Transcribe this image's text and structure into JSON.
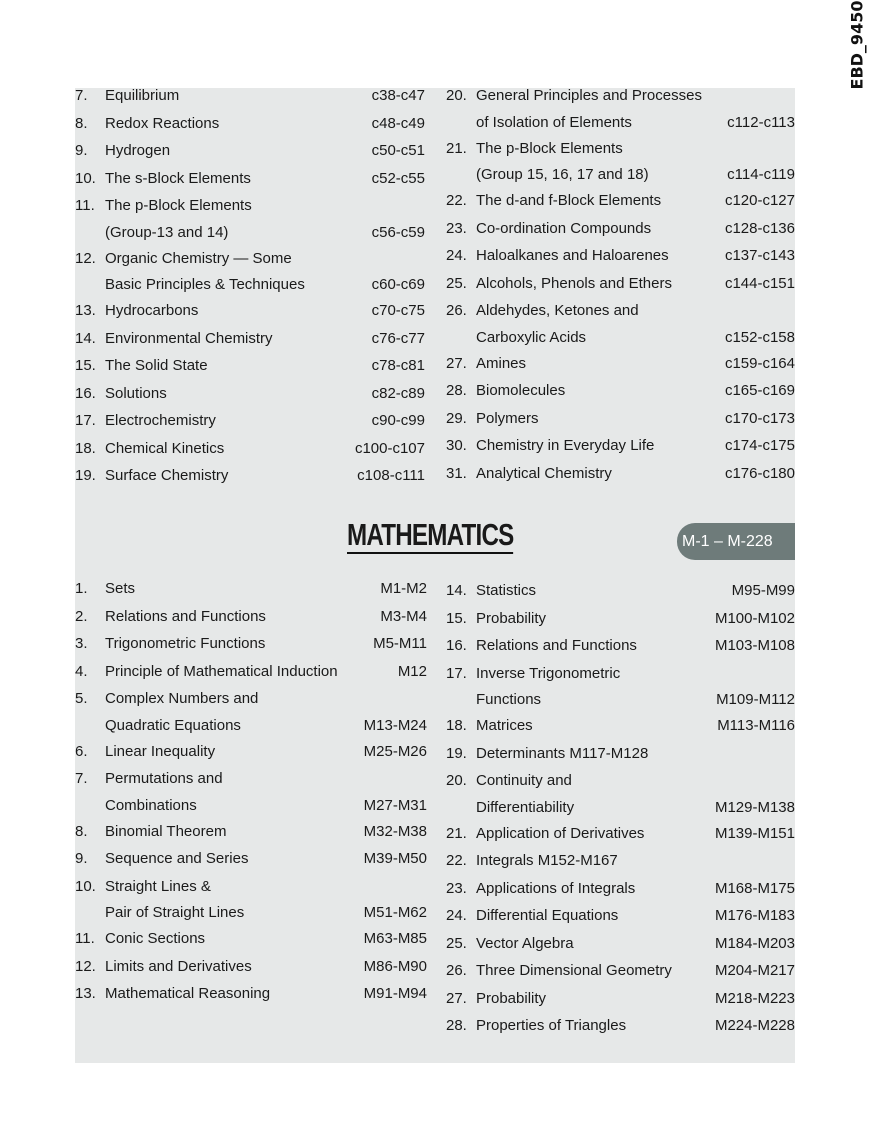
{
  "page_code": "EBD_9450",
  "chemistry": {
    "left": [
      {
        "num": "7.",
        "lines": [
          "Equilibrium"
        ],
        "pages": "c38-c47"
      },
      {
        "num": "8.",
        "lines": [
          "Redox Reactions"
        ],
        "pages": "c48-c49"
      },
      {
        "num": "9.",
        "lines": [
          "Hydrogen"
        ],
        "pages": "c50-c51"
      },
      {
        "num": "10.",
        "lines": [
          "The s-Block Elements"
        ],
        "pages": "c52-c55"
      },
      {
        "num": "11.",
        "lines": [
          "The p-Block Elements",
          "(Group-13 and 14)"
        ],
        "pages": "c56-c59"
      },
      {
        "num": "12.",
        "lines": [
          "Organic Chemistry — Some",
          "Basic Principles & Techniques"
        ],
        "pages": "c60-c69"
      },
      {
        "num": "13.",
        "lines": [
          "Hydrocarbons"
        ],
        "pages": "c70-c75"
      },
      {
        "num": "14.",
        "lines": [
          "Environmental Chemistry"
        ],
        "pages": "c76-c77"
      },
      {
        "num": "15.",
        "lines": [
          "The Solid State"
        ],
        "pages": "c78-c81"
      },
      {
        "num": "16.",
        "lines": [
          "Solutions"
        ],
        "pages": "c82-c89"
      },
      {
        "num": "17.",
        "lines": [
          "Electrochemistry"
        ],
        "pages": "c90-c99"
      },
      {
        "num": "18.",
        "lines": [
          "Chemical Kinetics"
        ],
        "pages": "c100-c107"
      },
      {
        "num": "19.",
        "lines": [
          "Surface Chemistry"
        ],
        "pages": "c108-c111"
      }
    ],
    "right": [
      {
        "num": "20.",
        "lines": [
          "General Principles and Processes",
          "of Isolation of Elements"
        ],
        "pages": "c112-c113"
      },
      {
        "num": "21.",
        "lines": [
          "The p-Block Elements",
          "(Group 15, 16, 17 and 18)"
        ],
        "pages": "c114-c119"
      },
      {
        "num": "22.",
        "lines": [
          "The d-and f-Block Elements"
        ],
        "pages": "c120-c127"
      },
      {
        "num": "23.",
        "lines": [
          "Co-ordination Compounds"
        ],
        "pages": "c128-c136"
      },
      {
        "num": "24.",
        "lines": [
          "Haloalkanes and Haloarenes"
        ],
        "pages": "c137-c143"
      },
      {
        "num": "25.",
        "lines": [
          "Alcohols, Phenols and Ethers"
        ],
        "pages": "c144-c151"
      },
      {
        "num": "26.",
        "lines": [
          "Aldehydes, Ketones and",
          "Carboxylic Acids"
        ],
        "pages": "c152-c158"
      },
      {
        "num": "27.",
        "lines": [
          "Amines"
        ],
        "pages": "c159-c164"
      },
      {
        "num": "28.",
        "lines": [
          "Biomolecules"
        ],
        "pages": "c165-c169"
      },
      {
        "num": "29.",
        "lines": [
          "Polymers"
        ],
        "pages": "c170-c173"
      },
      {
        "num": "30.",
        "lines": [
          "Chemistry in Everyday Life"
        ],
        "pages": "c174-c175"
      },
      {
        "num": "31.",
        "lines": [
          "Analytical Chemistry"
        ],
        "pages": "c176-c180"
      }
    ]
  },
  "mathematics": {
    "title": "MATHEMATICS",
    "range": "M-1 – M-228",
    "left": [
      {
        "num": "1.",
        "lines": [
          "Sets"
        ],
        "pages": "M1-M2"
      },
      {
        "num": "2.",
        "lines": [
          "Relations and Functions"
        ],
        "pages": "M3-M4"
      },
      {
        "num": "3.",
        "lines": [
          "Trigonometric Functions"
        ],
        "pages": "M5-M11"
      },
      {
        "num": "4.",
        "lines": [
          "Principle of Mathematical Induction"
        ],
        "pages": "M12"
      },
      {
        "num": "5.",
        "lines": [
          "Complex Numbers and",
          "Quadratic Equations"
        ],
        "pages": "M13-M24"
      },
      {
        "num": "6.",
        "lines": [
          "Linear Inequality"
        ],
        "pages": "M25-M26"
      },
      {
        "num": "7.",
        "lines": [
          "Permutations and",
          "Combinations"
        ],
        "pages": "M27-M31"
      },
      {
        "num": "8.",
        "lines": [
          "Binomial Theorem"
        ],
        "pages": "M32-M38"
      },
      {
        "num": "9.",
        "lines": [
          "Sequence and Series"
        ],
        "pages": "M39-M50"
      },
      {
        "num": "10.",
        "lines": [
          "Straight Lines &",
          "Pair of Straight Lines"
        ],
        "pages": "M51-M62"
      },
      {
        "num": "11.",
        "lines": [
          "Conic Sections"
        ],
        "pages": "M63-M85"
      },
      {
        "num": "12.",
        "lines": [
          "Limits and Derivatives"
        ],
        "pages": "M86-M90"
      },
      {
        "num": "13.",
        "lines": [
          "Mathematical Reasoning"
        ],
        "pages": "M91-M94"
      }
    ],
    "right": [
      {
        "num": "14.",
        "lines": [
          "Statistics"
        ],
        "pages": "M95-M99"
      },
      {
        "num": "15.",
        "lines": [
          "Probability"
        ],
        "pages": "M100-M102"
      },
      {
        "num": "16.",
        "lines": [
          "Relations and Functions"
        ],
        "pages": "M103-M108"
      },
      {
        "num": "17.",
        "lines": [
          "Inverse Trigonometric",
          "Functions"
        ],
        "pages": "M109-M112"
      },
      {
        "num": "18.",
        "lines": [
          "Matrices"
        ],
        "pages": "M113-M116"
      },
      {
        "num": "19.",
        "lines": [
          "Determinants M117-M128"
        ],
        "pages": ""
      },
      {
        "num": "20.",
        "lines": [
          "Continuity and",
          "Differentiability"
        ],
        "pages": "M129-M138"
      },
      {
        "num": "21.",
        "lines": [
          "Application of Derivatives"
        ],
        "pages": "M139-M151"
      },
      {
        "num": "22.",
        "lines": [
          "Integrals M152-M167"
        ],
        "pages": ""
      },
      {
        "num": "23.",
        "lines": [
          "Applications of Integrals"
        ],
        "pages": "M168-M175"
      },
      {
        "num": "24.",
        "lines": [
          "Differential Equations"
        ],
        "pages": "M176-M183"
      },
      {
        "num": "25.",
        "lines": [
          "Vector Algebra"
        ],
        "pages": "M184-M203"
      },
      {
        "num": "26.",
        "lines": [
          "Three Dimensional Geometry"
        ],
        "pages": "M204-M217"
      },
      {
        "num": "27.",
        "lines": [
          "Probability"
        ],
        "pages": "M218-M223"
      },
      {
        "num": "28.",
        "lines": [
          "Properties of Triangles"
        ],
        "pages": "M224-M228"
      }
    ]
  },
  "colors": {
    "panel": "#e6e8e8",
    "pill": "#6e7b7a"
  }
}
